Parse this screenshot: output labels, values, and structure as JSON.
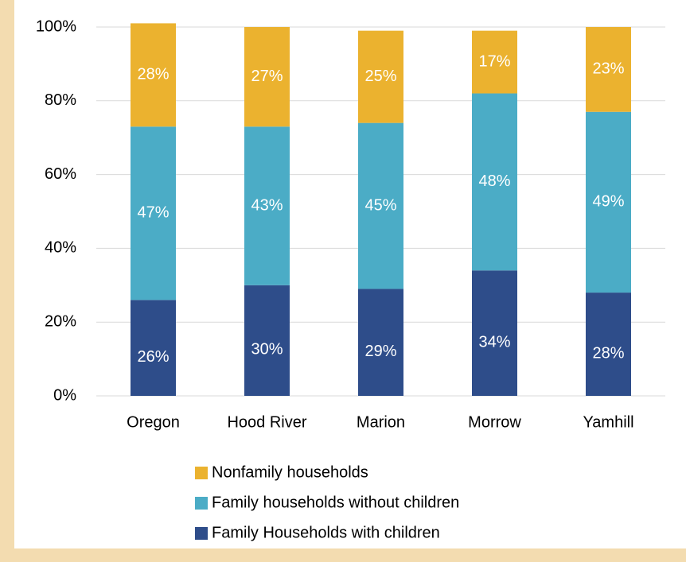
{
  "chart_data": {
    "type": "stacked_bar",
    "categories": [
      "Oregon",
      "Hood River",
      "Marion",
      "Morrow",
      "Yamhill"
    ],
    "series": [
      {
        "name": "Family Households with children",
        "color": "#2e4d8a",
        "values": [
          26,
          30,
          29,
          34,
          28
        ],
        "value_labels": [
          "26%",
          "30%",
          "29%",
          "34%",
          "28%"
        ]
      },
      {
        "name": "Family households without children",
        "color": "#4bacc6",
        "values": [
          47,
          43,
          45,
          48,
          49
        ],
        "value_labels": [
          "47%",
          "43%",
          "45%",
          "48%",
          "49%"
        ]
      },
      {
        "name": "Nonfamily households",
        "color": "#ebb22f",
        "values": [
          28,
          27,
          25,
          17,
          23
        ],
        "value_labels": [
          "28%",
          "27%",
          "25%",
          "17%",
          "23%"
        ]
      }
    ],
    "ylim": [
      0,
      100
    ],
    "yticks": [
      {
        "value": 0,
        "label": "0%"
      },
      {
        "value": 20,
        "label": "20%"
      },
      {
        "value": 40,
        "label": "40%"
      },
      {
        "value": 60,
        "label": "60%"
      },
      {
        "value": 80,
        "label": "80%"
      },
      {
        "value": 100,
        "label": "100%"
      }
    ],
    "grid": true,
    "legend": "bottom"
  }
}
